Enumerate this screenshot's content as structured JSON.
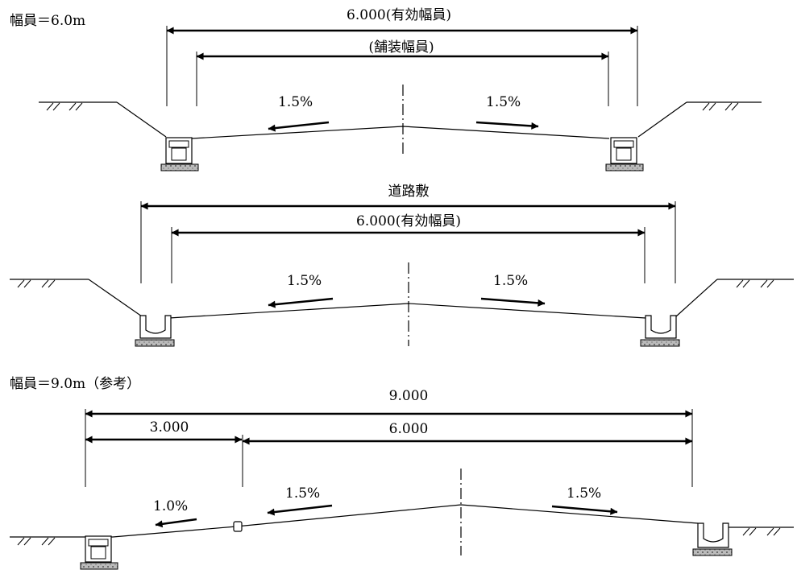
{
  "section1": {
    "heading": "幅員＝6.0m",
    "dim_outer": "6.000(有効幅員)",
    "dim_inner": "(舗装幅員)",
    "slope_left": "1.5%",
    "slope_right": "1.5%"
  },
  "section2": {
    "dim_outer": "道路敷",
    "dim_inner": "6.000(有効幅員)",
    "slope_left": "1.5%",
    "slope_right": "1.5%"
  },
  "section3": {
    "heading": "幅員＝9.0m（参考）",
    "dim_total": "9.000",
    "dim_left": "3.000",
    "dim_right": "6.000",
    "slope_far_left": "1.0%",
    "slope_left": "1.5%",
    "slope_right": "1.5%"
  }
}
